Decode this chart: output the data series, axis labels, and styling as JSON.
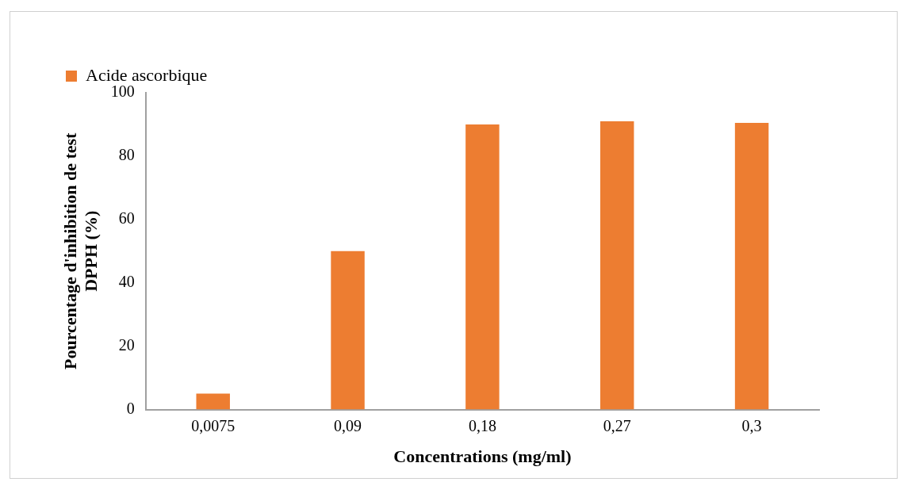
{
  "chart_data": {
    "type": "bar",
    "xlabel": "Concentrations (mg/ml)",
    "ylabel": "Pourcentage d'inhibition de test DPPH (%)",
    "categories": [
      "0,0075",
      "0,09",
      "0,18",
      "0,27",
      "0,3"
    ],
    "series": [
      {
        "name": "Acide ascorbique",
        "color": "#ed7d31",
        "values": [
          5,
          50,
          90,
          91,
          90.5
        ]
      }
    ],
    "ylim": [
      0,
      100
    ],
    "yticks": [
      0,
      20,
      40,
      60,
      80,
      100
    ],
    "grid": false,
    "legend": "top left"
  }
}
